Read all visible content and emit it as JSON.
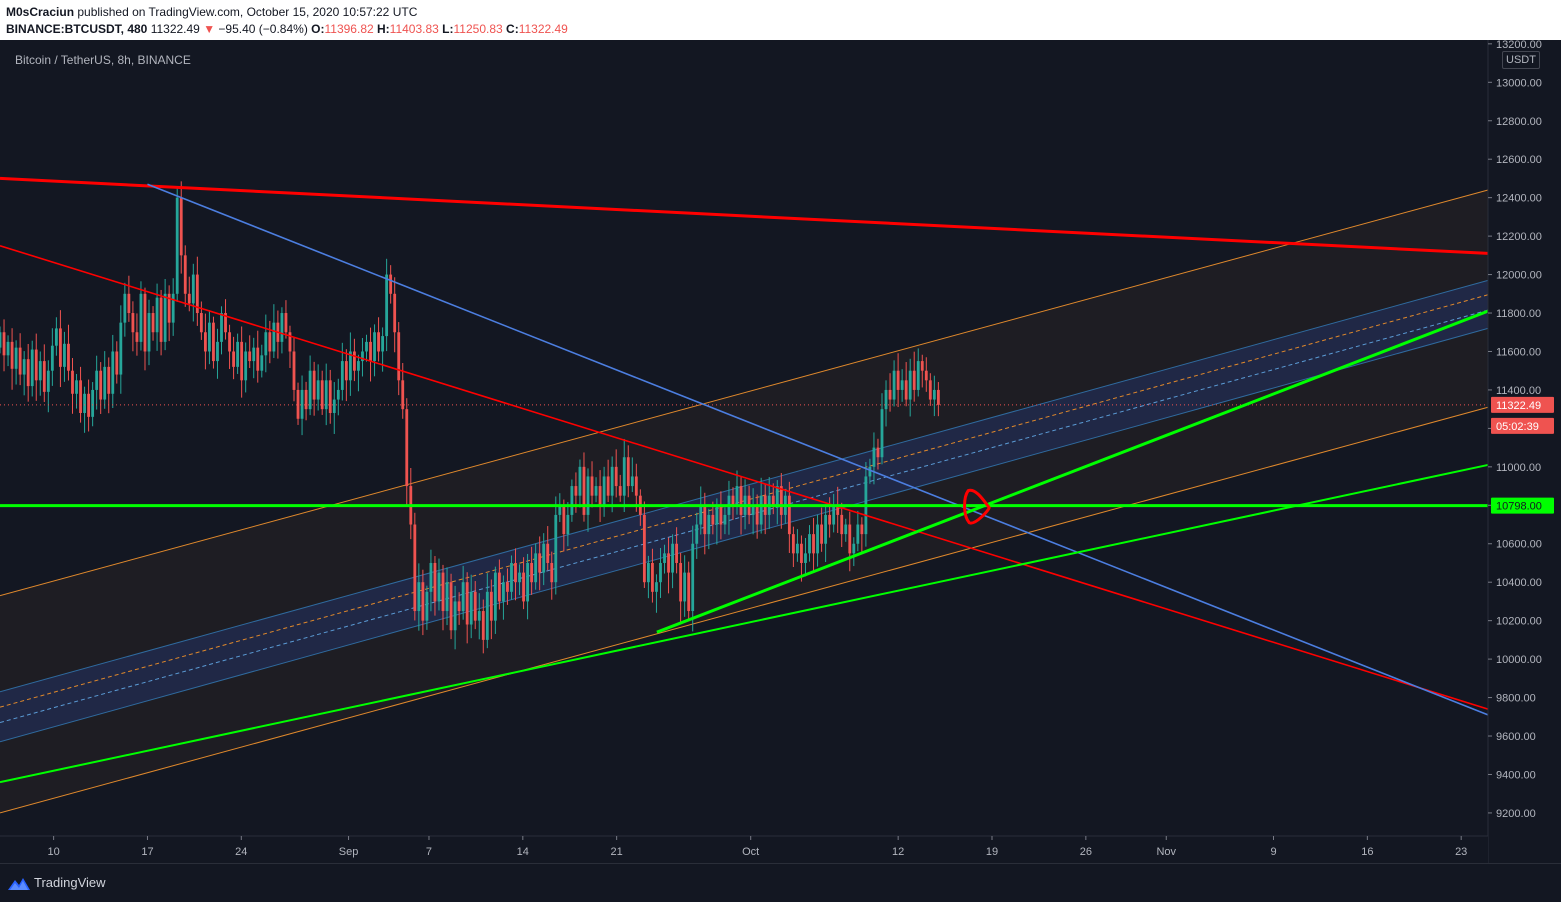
{
  "header": {
    "author": "M0sCraciun",
    "published": " published on TradingView.com, October 15, 2020 10:57:22 UTC",
    "symbol": "BINANCE:BTCUSDT, 480",
    "price": " 11322.49 ",
    "change_arrow": "▼",
    "change": " −95.40 (−0.84%) ",
    "o_label": "O:",
    "o_value": "11396.82",
    "h_label": " H:",
    "h_value": "11403.83",
    "l_label": " L:",
    "l_value": "11250.83",
    "c_label": " C:",
    "c_value": "11322.49"
  },
  "chart_title": "Bitcoin / TetherUS, 8h, BINANCE",
  "currency": "USDT",
  "footer": {
    "brand": "TradingView"
  },
  "colors": {
    "background": "#131722",
    "up": "#26a69a",
    "down": "#ef5350",
    "red_line": "#ff0000",
    "green_line": "#00ff00",
    "blue_line": "#4c7ee0",
    "orange_channel": "#e0892c",
    "price_tag": "#ef5350",
    "level_tag": "#00ff00"
  },
  "chart_data": {
    "type": "candlestick",
    "interval": "8h",
    "symbol": "BTCUSDT",
    "yaxis": {
      "ticks": [
        9200,
        9400,
        9600,
        9800,
        10000,
        10200,
        10400,
        10600,
        10800,
        11000,
        11200,
        11400,
        11600,
        11800,
        12000,
        12200,
        12400,
        12600,
        12800,
        13000,
        13200
      ],
      "tick_labels": [
        "9200.00",
        "9400.00",
        "9600.00",
        "9800.00",
        "10000.00",
        "10200.00",
        "10400.00",
        "10600.00",
        "10800.00",
        "11000.00",
        "11200.00",
        "11400.00",
        "11600.00",
        "11800.00",
        "12000.00",
        "12200.00",
        "12400.00",
        "12600.00",
        "12800.00",
        "13000.00",
        "13200.00"
      ],
      "range": [
        9080,
        13220
      ],
      "position": "right"
    },
    "xaxis": {
      "tick_labels": [
        "10",
        "17",
        "24",
        "Sep",
        "7",
        "14",
        "21",
        "Oct",
        "12",
        "19",
        "26",
        "Nov",
        "9",
        "16",
        "23"
      ],
      "tick_dates": [
        "2020-08-10",
        "2020-08-17",
        "2020-08-24",
        "2020-09-01",
        "2020-09-07",
        "2020-09-14",
        "2020-09-21",
        "2020-10-01",
        "2020-10-12",
        "2020-10-19",
        "2020-10-26",
        "2020-11-01",
        "2020-11-09",
        "2020-11-16",
        "2020-11-23"
      ],
      "range": [
        "2020-08-06",
        "2020-11-25"
      ]
    },
    "closes": [
      11700,
      11580,
      11650,
      11510,
      11620,
      11480,
      11560,
      11420,
      11610,
      11450,
      11550,
      11390,
      11500,
      11630,
      11720,
      11520,
      11640,
      11500,
      11380,
      11450,
      11280,
      11380,
      11260,
      11400,
      11500,
      11350,
      11520,
      11380,
      11600,
      11480,
      11750,
      11900,
      11800,
      11700,
      11650,
      11900,
      11600,
      11800,
      11700,
      11880,
      11650,
      11900,
      11750,
      11900,
      12400,
      12100,
      11900,
      11850,
      12000,
      11800,
      11700,
      11600,
      11750,
      11550,
      11650,
      11800,
      11700,
      11600,
      11520,
      11650,
      11450,
      11600,
      11550,
      11620,
      11500,
      11580,
      11700,
      11600,
      11750,
      11650,
      11800,
      11700,
      11600,
      11400,
      11250,
      11400,
      11300,
      11500,
      11350,
      11450,
      11300,
      11450,
      11280,
      11350,
      11400,
      11550,
      11450,
      11600,
      11500,
      11550,
      11600,
      11650,
      11550,
      11700,
      11600,
      11680,
      12000,
      11900,
      11700,
      11450,
      11300,
      10900,
      10700,
      10250,
      10400,
      10200,
      10350,
      10500,
      10300,
      10450,
      10250,
      10400,
      10150,
      10300,
      10250,
      10400,
      10180,
      10350,
      10200,
      10250,
      10100,
      10350,
      10200,
      10450,
      10300,
      10400,
      10350,
      10500,
      10400,
      10450,
      10300,
      10500,
      10400,
      10550,
      10450,
      10600,
      10500,
      10400,
      10750,
      10800,
      10650,
      10750,
      10900,
      10850,
      11000,
      10750,
      10950,
      10850,
      10900,
      10800,
      10950,
      10850,
      11000,
      10900,
      10850,
      11050,
      10900,
      10950,
      10850,
      10750,
      10400,
      10500,
      10350,
      10400,
      10500,
      10550,
      10450,
      10600,
      10500,
      10300,
      10450,
      10250,
      10600,
      10700,
      10800,
      10650,
      10750,
      10700,
      10800,
      10700,
      10750,
      10850,
      10800,
      10900,
      10750,
      10850,
      10750,
      10800,
      10700,
      10850,
      10750,
      10850,
      10800,
      10900,
      10750,
      10850,
      10650,
      10550,
      10600,
      10500,
      10550,
      10650,
      10550,
      10700,
      10600,
      10750,
      10700,
      10800,
      10750,
      10650,
      10700,
      10550,
      10600,
      10700,
      10650,
      10950,
      11000,
      11100,
      11050,
      11300,
      11400,
      11350,
      11500,
      11400,
      11450,
      11350,
      11500,
      11400,
      11550,
      11500,
      11450,
      11350,
      11400,
      11322.49
    ],
    "last_price": 11322.49,
    "last_price_label": "11322.49",
    "countdown_label": "05:02:39",
    "level_label": "10798.00",
    "drawings": [
      {
        "kind": "trendline",
        "color": "red",
        "from": [
          "2020-08-06",
          12500
        ],
        "to": [
          "2020-11-25",
          12110
        ]
      },
      {
        "kind": "trendline",
        "color": "red",
        "from": [
          "2020-08-06",
          12150
        ],
        "to": [
          "2020-11-25",
          9740
        ]
      },
      {
        "kind": "trendline",
        "color": "blue",
        "from": [
          "2020-08-17",
          12470
        ],
        "to": [
          "2020-11-25",
          9710
        ]
      },
      {
        "kind": "horizontal",
        "color": "green",
        "price": 10798
      },
      {
        "kind": "trendline",
        "color": "green",
        "from": [
          "2020-08-06",
          9360
        ],
        "to": [
          "2020-11-25",
          11010
        ]
      },
      {
        "kind": "trendline",
        "color": "green",
        "from": [
          "2020-09-24",
          10140
        ],
        "to": [
          "2020-11-25",
          11810
        ]
      },
      {
        "kind": "channel",
        "color": "orange",
        "upper_from": [
          "2020-08-06",
          10330
        ],
        "upper_to": [
          "2020-11-25",
          12440
        ],
        "lower_from": [
          "2020-08-06",
          9200
        ],
        "lower_to": [
          "2020-11-25",
          11310
        ]
      },
      {
        "kind": "channel",
        "color": "blue",
        "upper_from": [
          "2020-08-06",
          9830
        ],
        "upper_to": [
          "2020-11-25",
          11970
        ],
        "lower_from": [
          "2020-08-06",
          9570
        ],
        "lower_to": [
          "2020-11-25",
          11720
        ]
      },
      {
        "kind": "ellipse",
        "color": "red",
        "at": [
          "2020-10-17",
          10798
        ]
      }
    ]
  }
}
